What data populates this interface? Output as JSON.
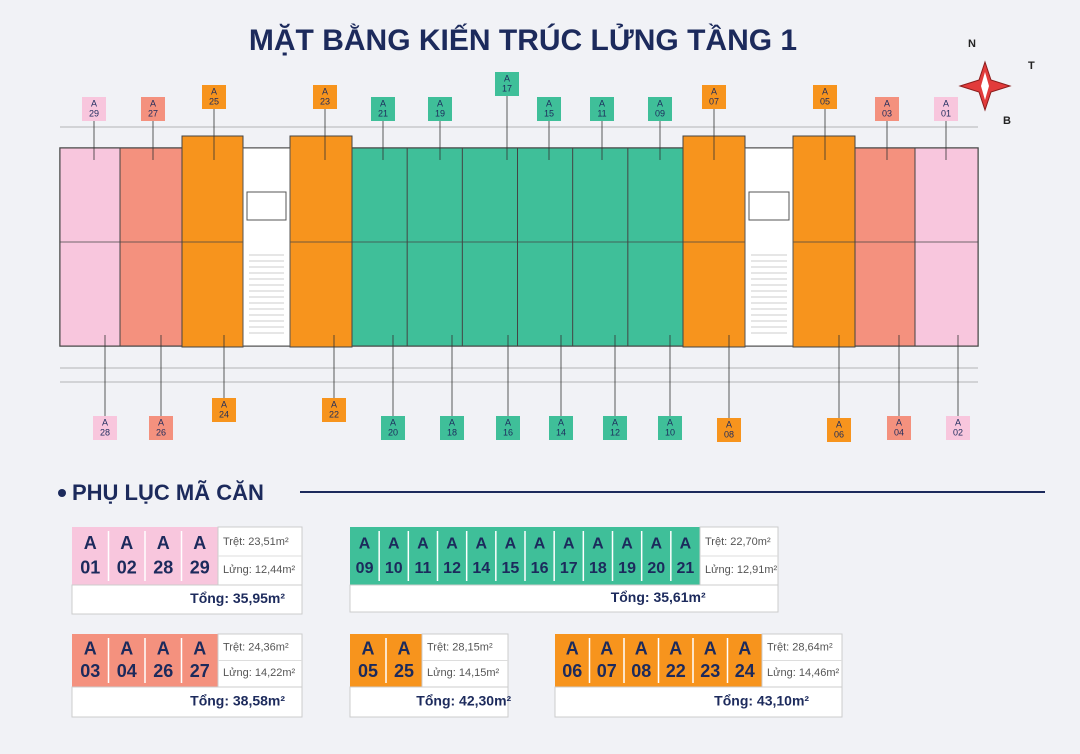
{
  "title": "MẶT BẰNG KIẾN TRÚC LỬNG TẦNG 1",
  "compass": {
    "north": "N",
    "east": "T",
    "south": "B"
  },
  "plan": {
    "tags_top": [
      {
        "prefix": "A",
        "number": "29",
        "color": "#f8c6dd"
      },
      {
        "prefix": "A",
        "number": "27",
        "color": "#f4917e"
      },
      {
        "prefix": "A",
        "number": "25",
        "color": "#f7941d"
      },
      {
        "prefix": "A",
        "number": "23",
        "color": "#f7941d"
      },
      {
        "prefix": "A",
        "number": "21",
        "color": "#3fbf99"
      },
      {
        "prefix": "A",
        "number": "19",
        "color": "#3fbf99"
      },
      {
        "prefix": "A",
        "number": "17",
        "color": "#3fbf99"
      },
      {
        "prefix": "A",
        "number": "15",
        "color": "#3fbf99"
      },
      {
        "prefix": "A",
        "number": "11",
        "color": "#3fbf99"
      },
      {
        "prefix": "A",
        "number": "09",
        "color": "#3fbf99"
      },
      {
        "prefix": "A",
        "number": "07",
        "color": "#f7941d"
      },
      {
        "prefix": "A",
        "number": "05",
        "color": "#f7941d"
      },
      {
        "prefix": "A",
        "number": "03",
        "color": "#f4917e"
      },
      {
        "prefix": "A",
        "number": "01",
        "color": "#f8c6dd"
      }
    ],
    "tags_bottom": [
      {
        "prefix": "A",
        "number": "28",
        "color": "#f8c6dd"
      },
      {
        "prefix": "A",
        "number": "26",
        "color": "#f4917e"
      },
      {
        "prefix": "A",
        "number": "24",
        "color": "#f7941d"
      },
      {
        "prefix": "A",
        "number": "22",
        "color": "#f7941d"
      },
      {
        "prefix": "A",
        "number": "20",
        "color": "#3fbf99"
      },
      {
        "prefix": "A",
        "number": "18",
        "color": "#3fbf99"
      },
      {
        "prefix": "A",
        "number": "16",
        "color": "#3fbf99"
      },
      {
        "prefix": "A",
        "number": "14",
        "color": "#3fbf99"
      },
      {
        "prefix": "A",
        "number": "12",
        "color": "#3fbf99"
      },
      {
        "prefix": "A",
        "number": "10",
        "color": "#3fbf99"
      },
      {
        "prefix": "A",
        "number": "08",
        "color": "#f7941d"
      },
      {
        "prefix": "A",
        "number": "06",
        "color": "#f7941d"
      },
      {
        "prefix": "A",
        "number": "04",
        "color": "#f4917e"
      },
      {
        "prefix": "A",
        "number": "02",
        "color": "#f8c6dd"
      }
    ]
  },
  "appendix": {
    "heading": "PHỤ LỤC MÃ CĂN",
    "groups": [
      {
        "prefix": "A",
        "codes": [
          "01",
          "02",
          "28",
          "29"
        ],
        "color": "#f8c6dd",
        "ground": "Trệt: 23,51m²",
        "mezzanine": "Lửng: 12,44m²",
        "total": "Tổng: 35,95m²"
      },
      {
        "prefix": "A",
        "codes": [
          "09",
          "10",
          "11",
          "12",
          "14",
          "15",
          "16",
          "17",
          "18",
          "19",
          "20",
          "21"
        ],
        "color": "#3fbf99",
        "ground": "Trệt: 22,70m²",
        "mezzanine": "Lửng: 12,91m²",
        "total": "Tổng: 35,61m²"
      },
      {
        "prefix": "A",
        "codes": [
          "03",
          "04",
          "26",
          "27"
        ],
        "color": "#f4917e",
        "ground": "Trệt: 24,36m²",
        "mezzanine": "Lửng: 14,22m²",
        "total": "Tổng: 38,58m²"
      },
      {
        "prefix": "A",
        "codes": [
          "05",
          "25"
        ],
        "color": "#f7941d",
        "ground": "Trệt: 28,15m²",
        "mezzanine": "Lửng: 14,15m²",
        "total": "Tổng: 42,30m²"
      },
      {
        "prefix": "A",
        "codes": [
          "06",
          "07",
          "08",
          "22",
          "23",
          "24"
        ],
        "color": "#f7941d",
        "ground": "Trệt: 28,64m²",
        "mezzanine": "Lửng: 14,46m²",
        "total": "Tổng: 43,10m²"
      }
    ]
  }
}
